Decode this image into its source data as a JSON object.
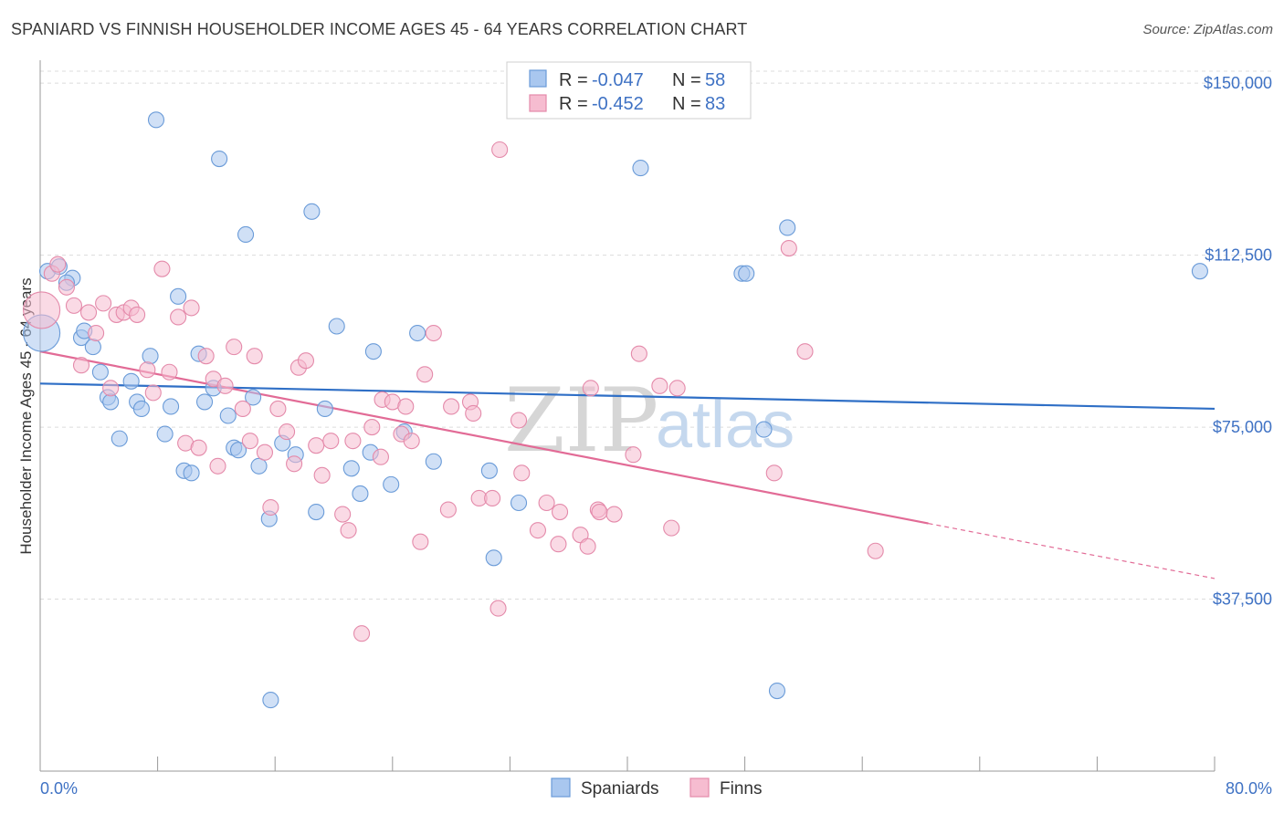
{
  "title": "SPANIARD VS FINNISH HOUSEHOLDER INCOME AGES 45 - 64 YEARS CORRELATION CHART",
  "source": "Source: ZipAtlas.com",
  "legend": {
    "rows": [
      {
        "r_label": "R =",
        "r_value": "-0.047",
        "n_label": "N =",
        "n_value": "58"
      },
      {
        "r_label": "R =",
        "r_value": "-0.452",
        "n_label": "N =",
        "n_value": "83"
      }
    ]
  },
  "bottom_legend": [
    "Spaniards",
    "Finns"
  ],
  "watermark": {
    "zip": "ZIP",
    "atlas": "atlas"
  },
  "colors": {
    "blue_fill": "#a9c7ef",
    "blue_stroke": "#6a9bd8",
    "blue_line": "#2f6fc6",
    "pink_fill": "#f6bcd0",
    "pink_stroke": "#e48aaa",
    "pink_line": "#e26b96",
    "axis_label": "#3f72c4"
  },
  "chart_data": {
    "type": "scatter",
    "title": "SPANIARD VS FINNISH HOUSEHOLDER INCOME AGES 45 - 64 YEARS CORRELATION CHART",
    "xlabel": "",
    "ylabel": "Householder Income Ages 45 - 64 years",
    "xlim": [
      0,
      80
    ],
    "ylim": [
      0,
      155000
    ],
    "x_tick_labels": [
      "0.0%",
      "80.0%"
    ],
    "y_tick_labels": [
      "$37,500",
      "$75,000",
      "$112,500",
      "$150,000"
    ],
    "y_ticks": [
      37500,
      75000,
      112500,
      150000
    ],
    "grid": true,
    "legend_position": "top-center",
    "series": [
      {
        "name": "Spaniards",
        "r": -0.047,
        "n": 58,
        "trend": {
          "x": [
            0,
            80
          ],
          "y": [
            84500,
            79000
          ]
        },
        "points": [
          [
            0.5,
            109000
          ],
          [
            1.3,
            110000
          ],
          [
            2.2,
            107500
          ],
          [
            1.8,
            106500
          ],
          [
            0.1,
            95500
          ],
          [
            2.8,
            94500
          ],
          [
            3.0,
            96000
          ],
          [
            3.6,
            92500
          ],
          [
            4.1,
            87000
          ],
          [
            4.6,
            81500
          ],
          [
            4.8,
            80500
          ],
          [
            5.4,
            72500
          ],
          [
            6.2,
            85000
          ],
          [
            6.6,
            80500
          ],
          [
            6.9,
            79000
          ],
          [
            7.5,
            90500
          ],
          [
            7.9,
            142000
          ],
          [
            8.5,
            73500
          ],
          [
            8.9,
            79500
          ],
          [
            9.4,
            103500
          ],
          [
            9.8,
            65500
          ],
          [
            10.3,
            65000
          ],
          [
            10.8,
            91000
          ],
          [
            11.2,
            80500
          ],
          [
            11.8,
            83500
          ],
          [
            12.2,
            133500
          ],
          [
            12.8,
            77500
          ],
          [
            13.2,
            70500
          ],
          [
            13.5,
            70000
          ],
          [
            14.0,
            117000
          ],
          [
            14.5,
            81500
          ],
          [
            14.9,
            66500
          ],
          [
            15.6,
            55000
          ],
          [
            15.7,
            15500
          ],
          [
            16.5,
            71500
          ],
          [
            17.4,
            69000
          ],
          [
            18.5,
            122000
          ],
          [
            18.8,
            56500
          ],
          [
            19.4,
            79000
          ],
          [
            20.2,
            97000
          ],
          [
            21.2,
            66000
          ],
          [
            21.8,
            60500
          ],
          [
            22.5,
            69500
          ],
          [
            22.7,
            91500
          ],
          [
            23.9,
            62500
          ],
          [
            24.8,
            74000
          ],
          [
            25.7,
            95500
          ],
          [
            26.8,
            67500
          ],
          [
            30.6,
            65500
          ],
          [
            30.9,
            46500
          ],
          [
            32.6,
            58500
          ],
          [
            40.9,
            131500
          ],
          [
            47.8,
            108500
          ],
          [
            48.1,
            108500
          ],
          [
            49.3,
            74500
          ],
          [
            50.2,
            17500
          ],
          [
            50.9,
            118500
          ],
          [
            79.0,
            109000
          ]
        ]
      },
      {
        "name": "Finns",
        "r": -0.452,
        "n": 83,
        "trend": {
          "x": [
            0,
            60.5
          ],
          "y": [
            91500,
            54000
          ]
        },
        "trend_dashed": {
          "x": [
            60.5,
            80
          ],
          "y": [
            54000,
            42000
          ]
        },
        "points": [
          [
            0.1,
            100500
          ],
          [
            0.8,
            108500
          ],
          [
            1.2,
            110500
          ],
          [
            1.8,
            105500
          ],
          [
            2.3,
            101500
          ],
          [
            2.8,
            88500
          ],
          [
            3.3,
            100000
          ],
          [
            3.8,
            95500
          ],
          [
            4.3,
            102000
          ],
          [
            4.8,
            83500
          ],
          [
            5.2,
            99500
          ],
          [
            5.7,
            100000
          ],
          [
            6.2,
            101000
          ],
          [
            6.6,
            99500
          ],
          [
            7.3,
            87500
          ],
          [
            7.7,
            82500
          ],
          [
            8.3,
            109500
          ],
          [
            8.8,
            87000
          ],
          [
            9.4,
            99000
          ],
          [
            9.9,
            71500
          ],
          [
            10.3,
            101000
          ],
          [
            10.8,
            70500
          ],
          [
            11.3,
            90500
          ],
          [
            11.8,
            85500
          ],
          [
            12.1,
            66500
          ],
          [
            12.6,
            84000
          ],
          [
            13.2,
            92500
          ],
          [
            13.8,
            79000
          ],
          [
            14.3,
            72000
          ],
          [
            14.6,
            90500
          ],
          [
            15.3,
            69500
          ],
          [
            15.7,
            57500
          ],
          [
            16.2,
            79000
          ],
          [
            16.8,
            74000
          ],
          [
            17.3,
            67000
          ],
          [
            17.6,
            88000
          ],
          [
            18.1,
            89500
          ],
          [
            18.8,
            71000
          ],
          [
            19.2,
            64500
          ],
          [
            19.8,
            72000
          ],
          [
            20.6,
            56000
          ],
          [
            21.0,
            52500
          ],
          [
            21.3,
            72000
          ],
          [
            21.9,
            30000
          ],
          [
            22.6,
            75000
          ],
          [
            23.2,
            68500
          ],
          [
            23.3,
            81000
          ],
          [
            24.0,
            80500
          ],
          [
            24.6,
            73500
          ],
          [
            24.9,
            79500
          ],
          [
            25.3,
            72000
          ],
          [
            25.9,
            50000
          ],
          [
            26.2,
            86500
          ],
          [
            26.8,
            95500
          ],
          [
            27.8,
            57000
          ],
          [
            28.0,
            79500
          ],
          [
            29.3,
            80500
          ],
          [
            29.5,
            78000
          ],
          [
            29.9,
            59500
          ],
          [
            30.8,
            59500
          ],
          [
            31.2,
            35500
          ],
          [
            31.3,
            135500
          ],
          [
            32.6,
            76500
          ],
          [
            32.8,
            65000
          ],
          [
            33.9,
            52500
          ],
          [
            34.5,
            58500
          ],
          [
            35.3,
            49500
          ],
          [
            35.4,
            56500
          ],
          [
            36.8,
            51500
          ],
          [
            37.3,
            49000
          ],
          [
            37.5,
            83500
          ],
          [
            38.0,
            57000
          ],
          [
            38.1,
            56500
          ],
          [
            39.1,
            56000
          ],
          [
            40.4,
            69000
          ],
          [
            40.8,
            91000
          ],
          [
            42.2,
            84000
          ],
          [
            43.0,
            53000
          ],
          [
            43.4,
            83500
          ],
          [
            50.0,
            65000
          ],
          [
            51.0,
            114000
          ],
          [
            52.1,
            91500
          ],
          [
            56.9,
            48000
          ]
        ]
      }
    ]
  }
}
